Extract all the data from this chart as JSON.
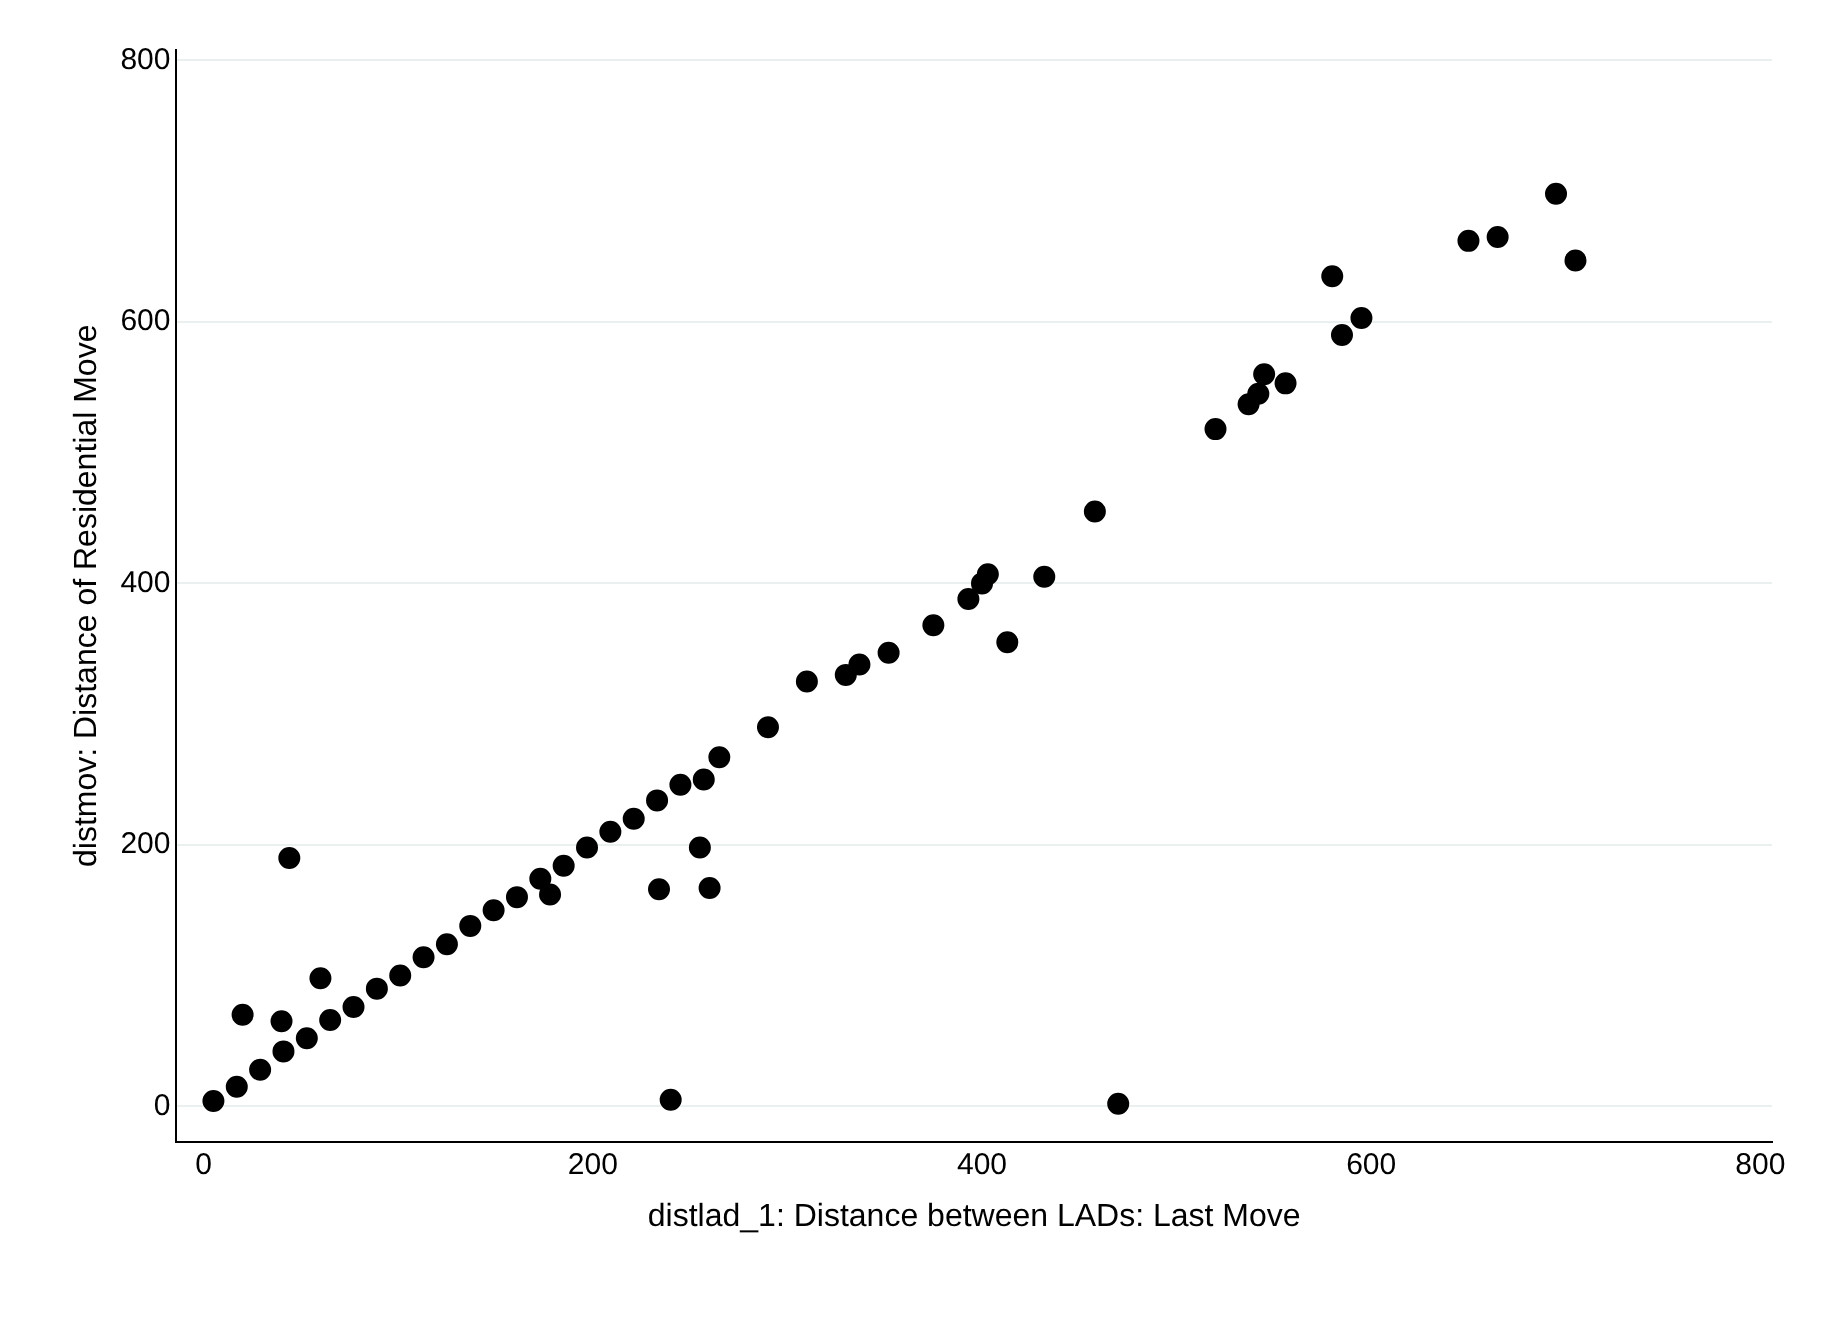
{
  "chart_data": {
    "type": "scatter",
    "xlabel": "distlad_1: Distance between LADs: Last Move",
    "ylabel": "distmov: Distance of Residential Move",
    "xlim": [
      -14,
      806
    ],
    "ylim": [
      -27,
      808
    ],
    "xticks": [
      0,
      200,
      400,
      600,
      800
    ],
    "yticks": [
      0,
      200,
      400,
      600,
      800
    ],
    "grid": "y",
    "marker": "circle",
    "legend": false,
    "series": [
      {
        "color": "#000000",
        "x": [
          5,
          17,
          29,
          41,
          53,
          65,
          77,
          89,
          101,
          113,
          125,
          137,
          149,
          161,
          173,
          185,
          197,
          209,
          221,
          233,
          245,
          257,
          265,
          20,
          40,
          60,
          178,
          44,
          240,
          470,
          234,
          255,
          260,
          290,
          310,
          330,
          337,
          352,
          375,
          393,
          400,
          403,
          413,
          432,
          458,
          520,
          537,
          542,
          545,
          556,
          580,
          585,
          595,
          650,
          665,
          695,
          705
        ],
        "values": [
          4,
          15,
          28,
          42,
          52,
          66,
          76,
          90,
          100,
          114,
          124,
          138,
          150,
          160,
          174,
          184,
          198,
          210,
          220,
          234,
          246,
          250,
          267,
          70,
          65,
          98,
          162,
          190,
          5,
          2,
          166,
          198,
          167,
          290,
          325,
          330,
          338,
          347,
          368,
          388,
          400,
          407,
          355,
          405,
          455,
          518,
          537,
          545,
          560,
          553,
          635,
          590,
          603,
          662,
          665,
          698,
          647
        ]
      }
    ]
  }
}
